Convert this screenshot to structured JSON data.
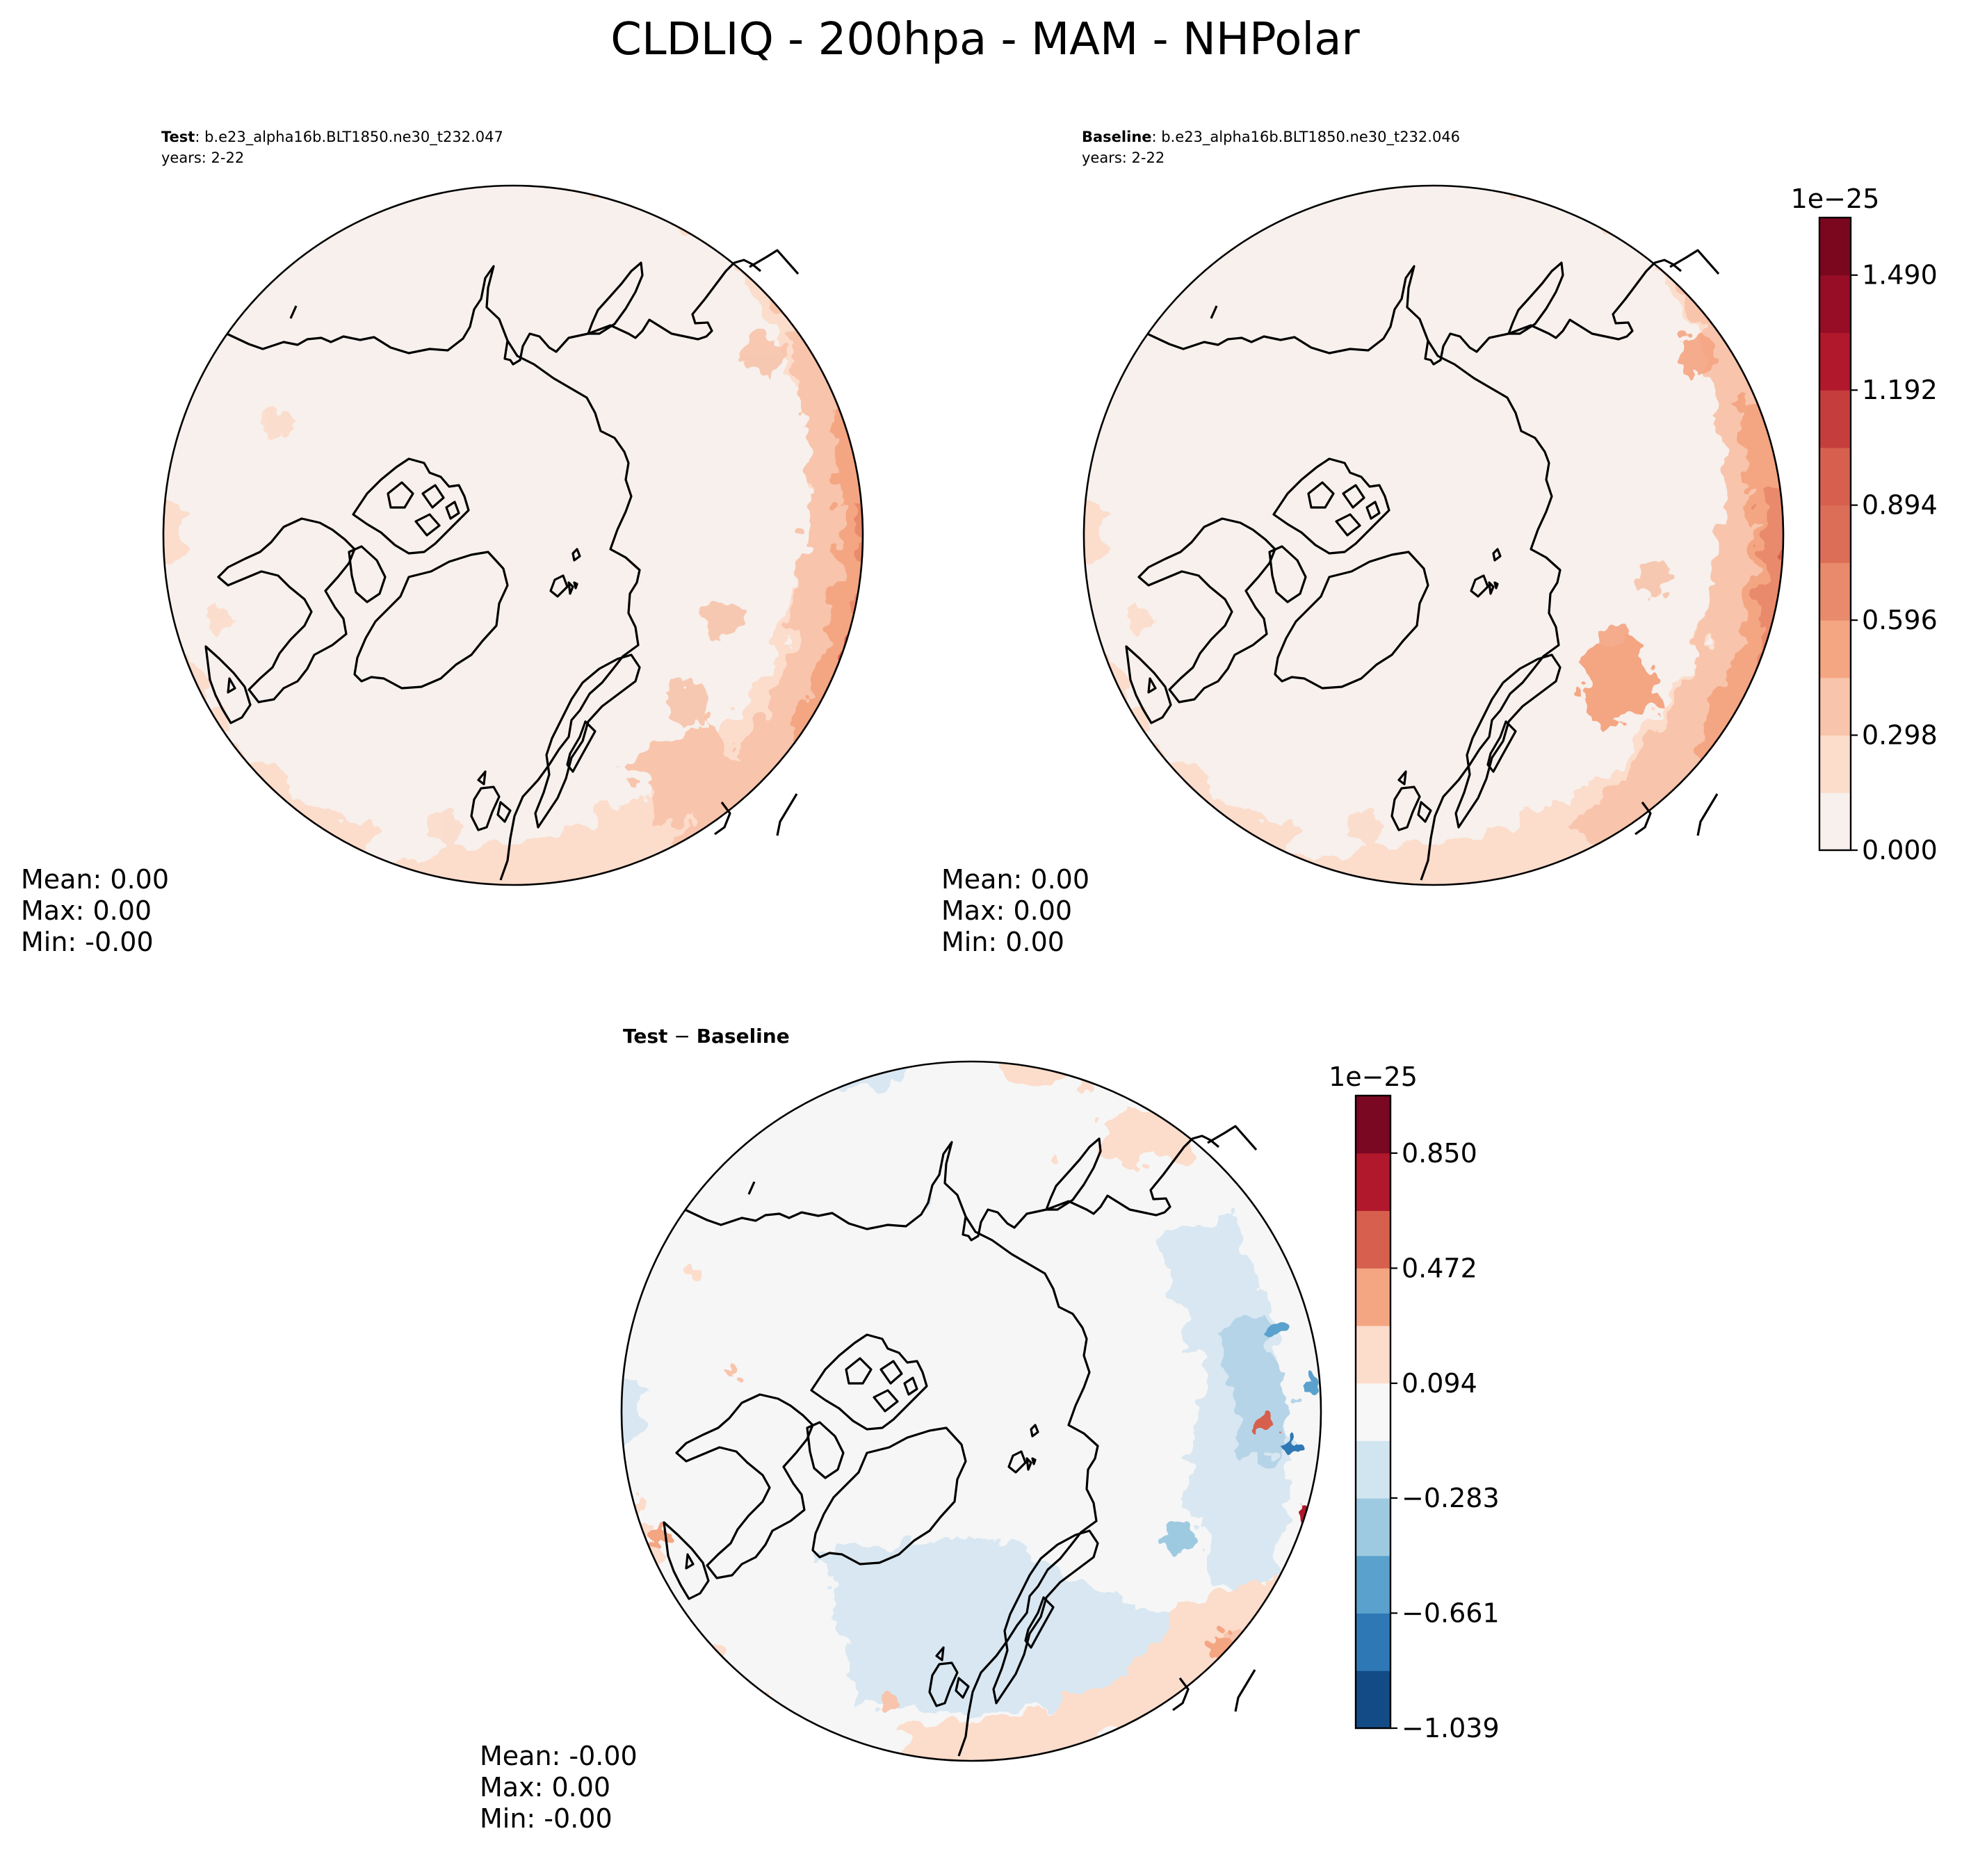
{
  "suptitle": "CLDLIQ - 200hpa - MAM - NHPolar",
  "panels": [
    {
      "id": "test",
      "label_bold": "Test",
      "case": ": b.e23_alpha16b.BLT1850.ne30_t232.047",
      "years": "years: 2-22",
      "stats": {
        "mean": "Mean:  0.00",
        "max": "Max:  0.00",
        "min": "Min: -0.00"
      }
    },
    {
      "id": "baseline",
      "label_bold": "Baseline",
      "case": ": b.e23_alpha16b.BLT1850.ne30_t232.046",
      "years": "years: 2-22",
      "stats": {
        "mean": "Mean:  0.00",
        "max": "Max:  0.00",
        "min": "Min:  0.00"
      }
    },
    {
      "id": "diff",
      "label_bold": "Test",
      "label_sep": " − ",
      "label_bold2": "Baseline",
      "stats": {
        "mean": "Mean: -0.00",
        "max": "Max:  0.00",
        "min": "Min: -0.00"
      }
    }
  ],
  "colorbars": [
    {
      "id": "cbar-abs",
      "exponent": "1e−25",
      "colors": [
        "#f7f0ec",
        "#fcdccb",
        "#f8c4ab",
        "#f4a582",
        "#e98a6c",
        "#dc6e57",
        "#d6604d",
        "#c53e3d",
        "#b2182b",
        "#960d25",
        "#7a071e"
      ],
      "tick_labels": [
        "0.000",
        "0.298",
        "0.596",
        "0.894",
        "1.192",
        "1.490"
      ],
      "tick_values": [
        0.0,
        0.298,
        0.596,
        0.894,
        1.192,
        1.49
      ],
      "range": [
        0.0,
        1.639
      ]
    },
    {
      "id": "cbar-diff",
      "exponent": "1e−25",
      "colors": [
        "#134b87",
        "#2e78b5",
        "#5aa1cd",
        "#9ecae1",
        "#d1e5f0",
        "#f7f7f7",
        "#fcdccb",
        "#f4a582",
        "#d6604d",
        "#b2182b",
        "#7a0822"
      ],
      "tick_labels": [
        "−1.039",
        "−0.661",
        "−0.283",
        "0.094",
        "0.472",
        "0.850"
      ],
      "tick_values": [
        -1.039,
        -0.661,
        -0.283,
        0.094,
        0.472,
        0.85
      ],
      "range": [
        -1.039,
        1.039
      ]
    }
  ]
}
